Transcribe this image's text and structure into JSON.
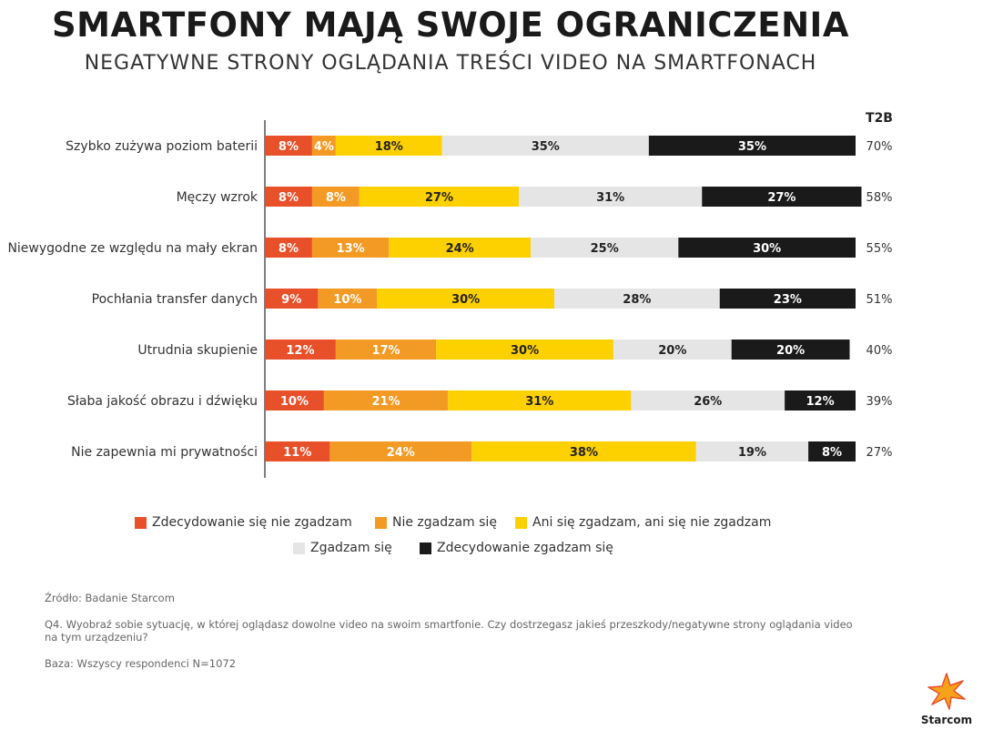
{
  "header": {
    "title": "SMARTFONY MAJĄ SWOJE OGRANICZENIA",
    "subtitle": "NEGATYWNE STRONY OGLĄDANIA TREŚCI VIDEO NA SMARTFONACH"
  },
  "chart_data": {
    "type": "bar",
    "orientation": "horizontal",
    "stacked": true,
    "percent_stacked": true,
    "title": "SMARTFONY MAJĄ SWOJE OGRANICZENIA",
    "xlim": [
      0,
      100
    ],
    "categories": [
      "Szybko zużywa poziom baterii",
      "Męczy wzrok",
      "Niewygodne ze względu na mały ekran",
      "Pochłania transfer danych",
      "Utrudnia skupienie",
      "Słaba jakość obrazu i dźwięku",
      "Nie zapewnia mi prywatności"
    ],
    "series": [
      {
        "name": "Zdecydowanie się nie zgadzam",
        "color": "#e8502a",
        "label_color": "#ffffff",
        "values": [
          8,
          8,
          8,
          9,
          12,
          10,
          11
        ]
      },
      {
        "name": "Nie zgadzam się",
        "color": "#f39a24",
        "label_color": "#ffffff",
        "values": [
          4,
          8,
          13,
          10,
          17,
          21,
          24
        ]
      },
      {
        "name": "Ani się zgadzam, ani się nie zgadzam",
        "color": "#fdd000",
        "label_color": "#222222",
        "values": [
          18,
          27,
          24,
          30,
          30,
          31,
          38
        ]
      },
      {
        "name": "Zgadzam się",
        "color": "#e5e5e5",
        "label_color": "#222222",
        "values": [
          35,
          31,
          25,
          28,
          20,
          26,
          19
        ]
      },
      {
        "name": "Zdecydowanie zgadzam się",
        "color": "#1a1a1a",
        "label_color": "#ffffff",
        "values": [
          35,
          27,
          30,
          23,
          20,
          12,
          8
        ]
      }
    ],
    "t2b": {
      "header": "T2B",
      "values": [
        "70%",
        "58%",
        "55%",
        "51%",
        "40%",
        "39%",
        "27%"
      ]
    },
    "legend": "bottom"
  },
  "notes": {
    "source": "Źródło: Badanie Starcom",
    "question": "Q4. Wyobraź sobie sytuację, w której oglądasz dowolne video na swoim smartfonie. Czy dostrzegasz jakieś przeszkody/negatywne strony oglądania video na tym urządzeniu?",
    "base": "Baza: Wszyscy respondenci N=1072"
  },
  "logo": {
    "text": "Starcom",
    "icon": "starcom-star-icon"
  }
}
